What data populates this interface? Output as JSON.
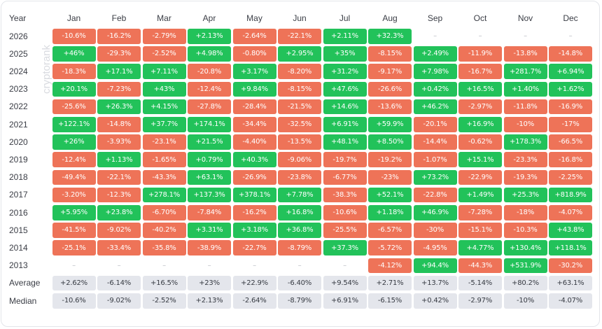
{
  "watermark": "cryptorank",
  "header_year": "Year",
  "months": [
    "Jan",
    "Feb",
    "Mar",
    "Apr",
    "May",
    "Jun",
    "Jul",
    "Aug",
    "Sep",
    "Oct",
    "Nov",
    "Dec"
  ],
  "rows": [
    {
      "year": "2026",
      "values": [
        "-10.6%",
        "-16.2%",
        "-2.79%",
        "+2.13%",
        "-2.64%",
        "-22.1%",
        "+2.11%",
        "+32.3%",
        "–",
        "–",
        "–",
        "–"
      ]
    },
    {
      "year": "2025",
      "values": [
        "+46%",
        "-29.3%",
        "-2.52%",
        "+4.98%",
        "-0.80%",
        "+2.95%",
        "+35%",
        "-8.15%",
        "+2.49%",
        "-11.9%",
        "-13.8%",
        "-14.8%"
      ]
    },
    {
      "year": "2024",
      "values": [
        "-18.3%",
        "+17.1%",
        "+7.11%",
        "-20.8%",
        "+3.17%",
        "-8.20%",
        "+31.2%",
        "-9.17%",
        "+7.98%",
        "-16.7%",
        "+281.7%",
        "+6.94%"
      ]
    },
    {
      "year": "2023",
      "values": [
        "+20.1%",
        "-7.23%",
        "+43%",
        "-12.4%",
        "+9.84%",
        "-8.15%",
        "+47.6%",
        "-26.6%",
        "+0.42%",
        "+16.5%",
        "+1.40%",
        "+1.62%"
      ]
    },
    {
      "year": "2022",
      "values": [
        "-25.6%",
        "+26.3%",
        "+4.15%",
        "-27.8%",
        "-28.4%",
        "-21.5%",
        "+14.6%",
        "-13.6%",
        "+46.2%",
        "-2.97%",
        "-11.8%",
        "-16.9%"
      ]
    },
    {
      "year": "2021",
      "values": [
        "+122.1%",
        "-14.8%",
        "+37.7%",
        "+174.1%",
        "-34.4%",
        "-32.5%",
        "+6.91%",
        "+59.9%",
        "-20.1%",
        "+16.9%",
        "-10%",
        "-17%"
      ]
    },
    {
      "year": "2020",
      "values": [
        "+26%",
        "-3.93%",
        "-23.1%",
        "+21.5%",
        "-4.40%",
        "-13.5%",
        "+48.1%",
        "+8.50%",
        "-14.4%",
        "-0.62%",
        "+178.3%",
        "-66.5%"
      ]
    },
    {
      "year": "2019",
      "values": [
        "-12.4%",
        "+1.13%",
        "-1.65%",
        "+0.79%",
        "+40.3%",
        "-9.06%",
        "-19.7%",
        "-19.2%",
        "-1.07%",
        "+15.1%",
        "-23.3%",
        "-16.8%"
      ]
    },
    {
      "year": "2018",
      "values": [
        "-49.4%",
        "-22.1%",
        "-43.3%",
        "+63.1%",
        "-26.9%",
        "-23.8%",
        "-6.77%",
        "-23%",
        "+73.2%",
        "-22.9%",
        "-19.3%",
        "-2.25%"
      ]
    },
    {
      "year": "2017",
      "values": [
        "-3.20%",
        "-12.3%",
        "+278.1%",
        "+137.3%",
        "+378.1%",
        "+7.78%",
        "-38.3%",
        "+52.1%",
        "-22.8%",
        "+1.49%",
        "+25.3%",
        "+818.9%"
      ]
    },
    {
      "year": "2016",
      "values": [
        "+5.95%",
        "+23.8%",
        "-6.70%",
        "-7.84%",
        "-16.2%",
        "+16.8%",
        "-10.6%",
        "+1.18%",
        "+46.9%",
        "-7.28%",
        "-18%",
        "-4.07%"
      ]
    },
    {
      "year": "2015",
      "values": [
        "-41.5%",
        "-9.02%",
        "-40.2%",
        "+3.31%",
        "+3.18%",
        "+36.8%",
        "-25.5%",
        "-6.57%",
        "-30%",
        "-15.1%",
        "-10.3%",
        "+43.8%"
      ]
    },
    {
      "year": "2014",
      "values": [
        "-25.1%",
        "-33.4%",
        "-35.8%",
        "-38.9%",
        "-22.7%",
        "-8.79%",
        "+37.3%",
        "-5.72%",
        "-4.95%",
        "+4.77%",
        "+130.4%",
        "+118.1%"
      ]
    },
    {
      "year": "2013",
      "values": [
        "–",
        "–",
        "–",
        "–",
        "–",
        "–",
        "–",
        "-4.12%",
        "+94.4%",
        "-44.3%",
        "+531.9%",
        "-30.2%"
      ]
    }
  ],
  "stats": [
    {
      "label": "Average",
      "values": [
        "+2.62%",
        "-6.14%",
        "+16.5%",
        "+23%",
        "+22.9%",
        "-6.40%",
        "+9.54%",
        "+2.71%",
        "+13.7%",
        "-5.14%",
        "+80.2%",
        "+63.1%"
      ]
    },
    {
      "label": "Median",
      "values": [
        "-10.6%",
        "-9.02%",
        "-2.52%",
        "+2.13%",
        "-2.64%",
        "-8.79%",
        "+6.91%",
        "-6.15%",
        "+0.42%",
        "-2.97%",
        "-10%",
        "-4.07%"
      ]
    }
  ],
  "colors": {
    "positive": "#22c25a",
    "negative": "#ee7358",
    "stat": "#e4e6ec",
    "empty": "#b8bbc2"
  }
}
